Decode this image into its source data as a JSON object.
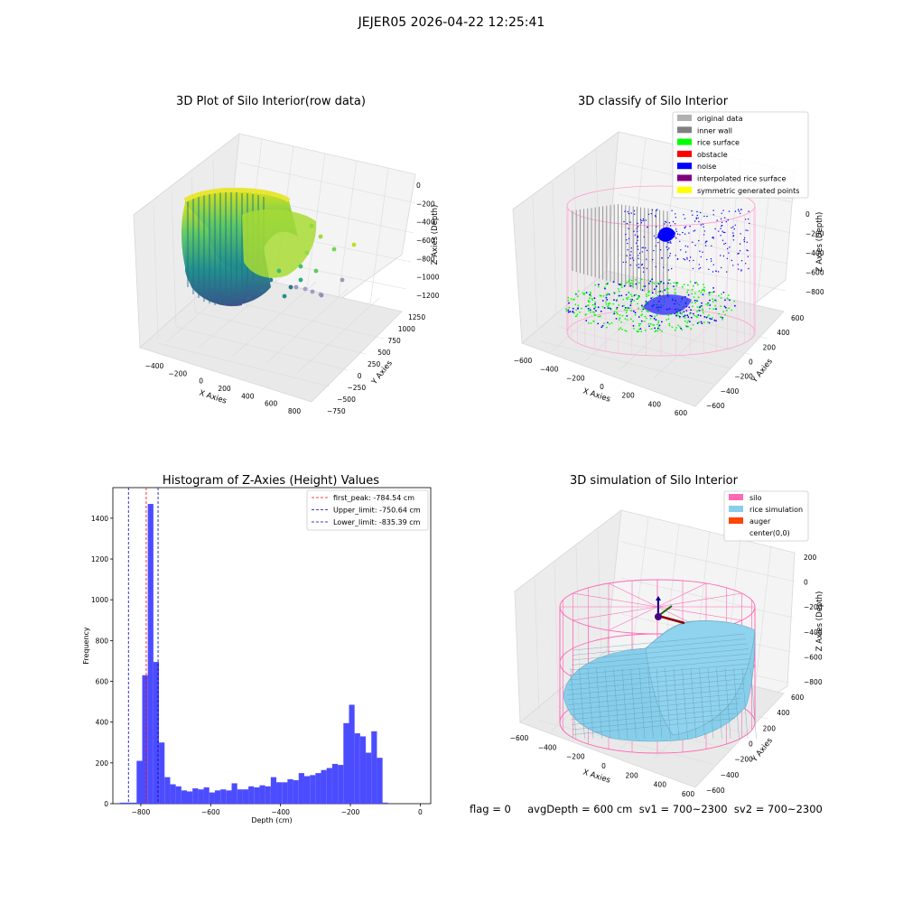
{
  "suptitle": "JEJER05 2026-04-22 12:25:41",
  "footer": {
    "text": "flag = 0     avgDepth = 600 cm  sv1 = 700~2300  sv2 = 700~2300"
  },
  "chart_data": [
    {
      "type": "scatter",
      "subtype": "3d",
      "title": "3D Plot of Silo Interior(row data)",
      "xlabel": "X Axies",
      "ylabel": "Y Axies",
      "zlabel": "Z Axies (Depth)",
      "xticks": [
        "−400",
        "−200",
        "0",
        "200",
        "400",
        "600",
        "800"
      ],
      "yticks": [
        "−750",
        "−500",
        "−250",
        "0",
        "250",
        "500",
        "750",
        "1000",
        "1250"
      ],
      "zticks": [
        "0",
        "−200",
        "−400",
        "−600",
        "−800",
        "−1000",
        "−1200"
      ],
      "xlim": [
        -500,
        850
      ],
      "ylim": [
        -800,
        1300
      ],
      "zlim": [
        -1300,
        50
      ],
      "colormap": "viridis",
      "grid": true
    },
    {
      "type": "scatter",
      "subtype": "3d",
      "title": "3D classify of Silo Interior",
      "xlabel": "X Axies",
      "ylabel": "Y Axies",
      "zlabel": "Z Axies (Depth)",
      "xticks": [
        "−600",
        "−400",
        "−200",
        "0",
        "200",
        "400",
        "600"
      ],
      "yticks": [
        "−600",
        "−400",
        "−200",
        "0",
        "200",
        "400",
        "600"
      ],
      "zticks": [
        "0",
        "−200",
        "−400",
        "−600",
        "−800"
      ],
      "xlim": [
        -650,
        650
      ],
      "ylim": [
        -650,
        650
      ],
      "zlim": [
        -900,
        80
      ],
      "grid": true,
      "legend_position": "top-right",
      "legend": [
        {
          "label": "original data",
          "color": "#b0b0b0"
        },
        {
          "label": "inner wall",
          "color": "#808080"
        },
        {
          "label": "rice surface",
          "color": "#00ff00"
        },
        {
          "label": "obstacle",
          "color": "#ff0000"
        },
        {
          "label": "noise",
          "color": "#0000ff"
        },
        {
          "label": "interpolated rice surface",
          "color": "#800080"
        },
        {
          "label": "symmetric generated points",
          "color": "#ffff00"
        }
      ]
    },
    {
      "type": "bar",
      "subtype": "histogram",
      "title": "Histogram of Z-Axies (Height) Values",
      "xlabel": "Depth (cm)",
      "ylabel": "Frequency",
      "xlim": [
        -880,
        30
      ],
      "ylim": [
        0,
        1550
      ],
      "xticks": [
        -800,
        -600,
        -400,
        -200,
        0
      ],
      "xtick_labels": [
        "−800",
        "−600",
        "−400",
        "−200",
        "0"
      ],
      "yticks": [
        0,
        200,
        400,
        600,
        800,
        1000,
        1200,
        1400
      ],
      "bar_color": "#4c4cff",
      "bin_start": -860,
      "bin_width": 16,
      "values": [
        5,
        5,
        5,
        210,
        630,
        1470,
        695,
        300,
        130,
        95,
        85,
        65,
        60,
        75,
        70,
        80,
        55,
        65,
        70,
        65,
        100,
        70,
        70,
        85,
        80,
        90,
        85,
        130,
        105,
        105,
        120,
        115,
        150,
        135,
        140,
        150,
        165,
        175,
        195,
        190,
        395,
        485,
        345,
        330,
        250,
        355,
        225,
        5
      ],
      "vlines": [
        {
          "label": "first_peak: -784.54 cm",
          "x": -784.54,
          "color": "#ff0000"
        },
        {
          "label": "Upper_limit: -750.64 cm",
          "x": -750.64,
          "color": "#0000aa"
        },
        {
          "label": "Lower_limit: -835.39 cm",
          "x": -835.39,
          "color": "#0000aa"
        }
      ],
      "legend_position": "top-right",
      "grid": false
    },
    {
      "type": "surface",
      "subtype": "3d",
      "title": "3D simulation of Silo Interior",
      "xlabel": "X Axies",
      "ylabel": "Y Axies",
      "zlabel": "Z Axies (Depth)",
      "xticks": [
        "−600",
        "−400",
        "−200",
        "0",
        "200",
        "400",
        "600"
      ],
      "yticks": [
        "−600",
        "−400",
        "−200",
        "0",
        "200",
        "400",
        "600"
      ],
      "zticks": [
        "200",
        "0",
        "−200",
        "−400",
        "−600",
        "−800"
      ],
      "xlim": [
        -650,
        650
      ],
      "ylim": [
        -650,
        650
      ],
      "zlim": [
        -900,
        300
      ],
      "grid": true,
      "legend_position": "top-right",
      "legend": [
        {
          "label": "silo",
          "color": "#ff69b4"
        },
        {
          "label": "rice simulation",
          "color": "#87ceeb"
        },
        {
          "label": "auger",
          "color": "#ff4500"
        },
        {
          "label": "center(0,0)",
          "color": ""
        }
      ]
    }
  ]
}
